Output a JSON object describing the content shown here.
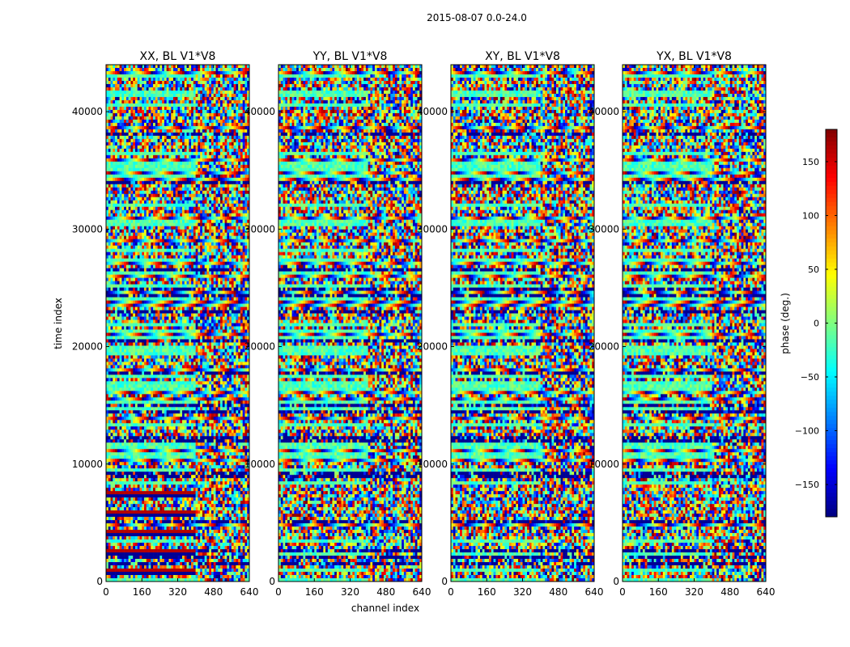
{
  "figure": {
    "suptitle": "2015-08-07 0.0-24.0",
    "ylabel": "time index",
    "xlabel": "channel index"
  },
  "chart_data": {
    "type": "heatmap",
    "panels": [
      {
        "title": "XX, BL V1*V8"
      },
      {
        "title": "YY, BL V1*V8"
      },
      {
        "title": "XY, BL V1*V8"
      },
      {
        "title": "YX, BL V1*V8"
      }
    ],
    "xlim": [
      0,
      640
    ],
    "xticks": [
      0,
      160,
      320,
      480,
      640
    ],
    "xtick_labels": [
      "0",
      "160",
      "320",
      "480",
      "640"
    ],
    "ylim": [
      0,
      44000
    ],
    "yticks": [
      0,
      10000,
      20000,
      30000,
      40000
    ],
    "ytick_labels": [
      "0",
      "10000",
      "20000",
      "30000",
      "40000"
    ],
    "colorbar": {
      "label": "phase (deg.)",
      "range": [
        -180,
        180
      ],
      "ticks": [
        -150,
        -100,
        -50,
        0,
        50,
        100,
        150
      ],
      "tick_labels": [
        "−150",
        "−100",
        "−50",
        "0",
        "50",
        "100",
        "150"
      ],
      "colormap": "jet"
    }
  }
}
